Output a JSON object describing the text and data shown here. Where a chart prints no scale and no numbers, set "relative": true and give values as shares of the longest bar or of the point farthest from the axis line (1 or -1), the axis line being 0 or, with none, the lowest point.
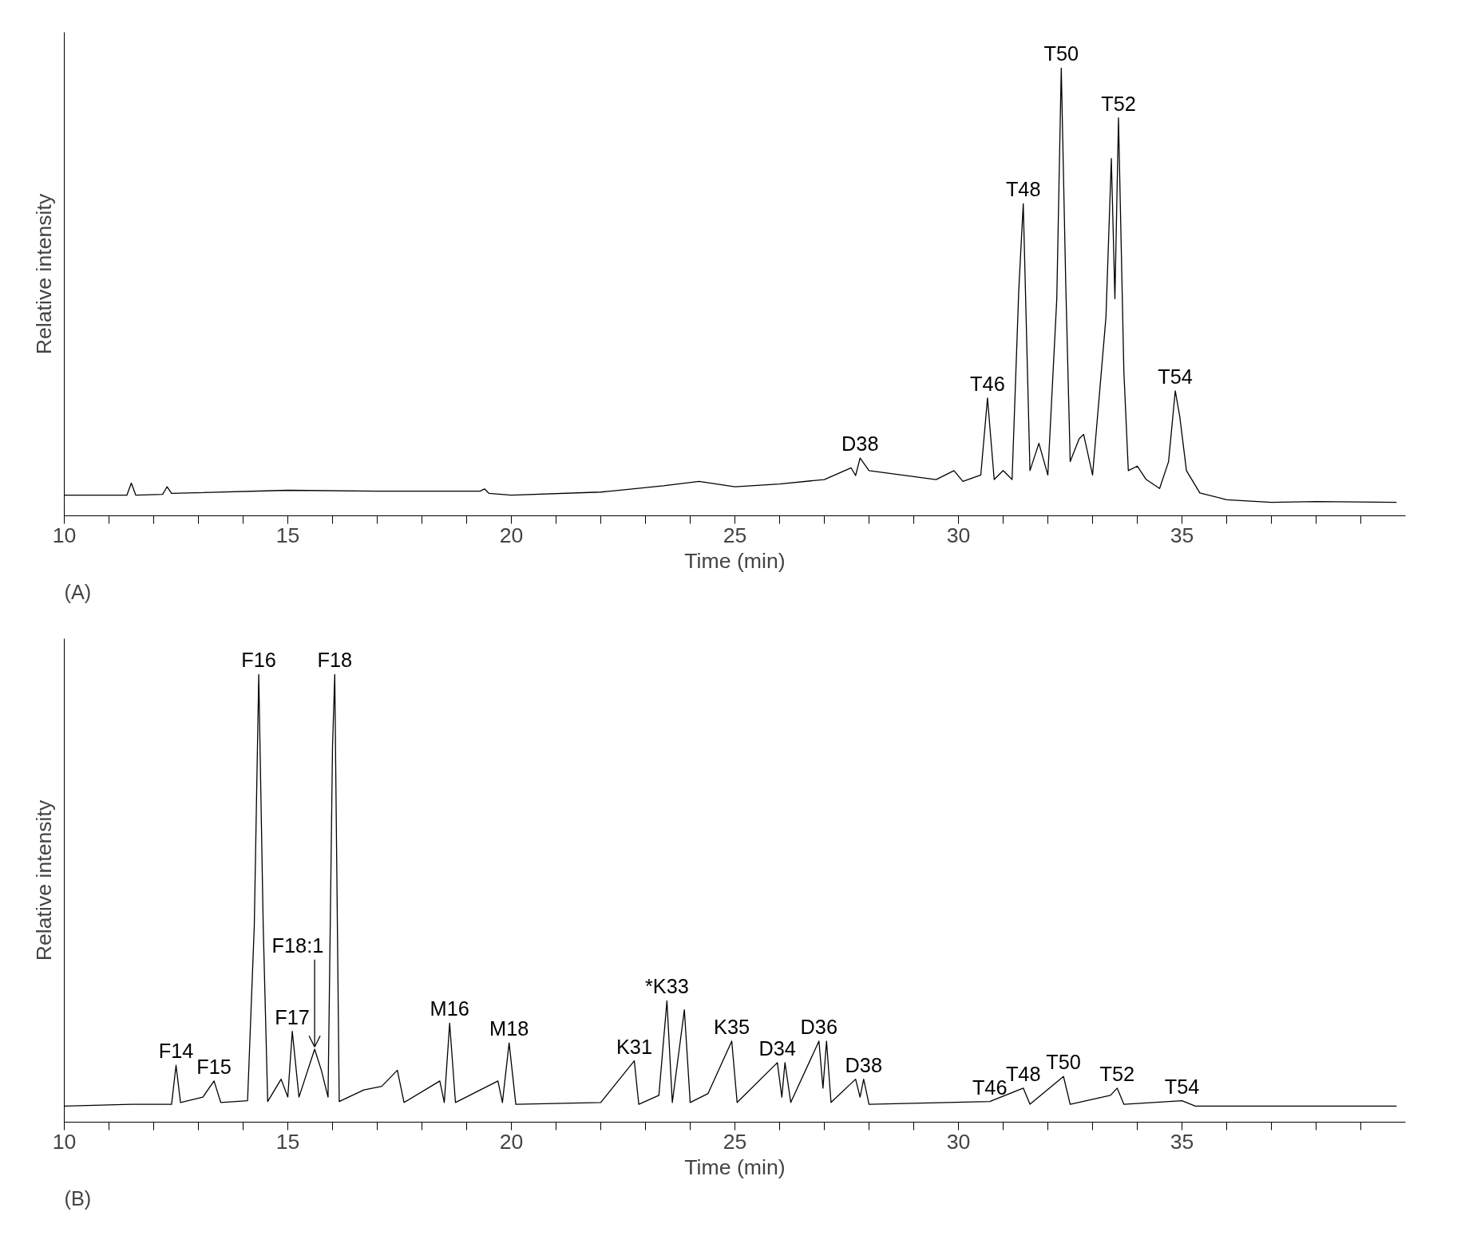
{
  "chart_data": [
    {
      "type": "line",
      "relative": true,
      "xlabel": "Time (min)",
      "ylabel": "Relative intensity",
      "xlim": [
        10,
        40
      ],
      "xticks": [
        10,
        {
          "value": 11,
          "label": null
        },
        {
          "value": 12,
          "label": null
        },
        {
          "value": 13,
          "label": null
        },
        {
          "value": 14,
          "label": null
        },
        15,
        {
          "value": 16,
          "label": null
        },
        {
          "value": 17,
          "label": null
        },
        {
          "value": 18,
          "label": null
        },
        {
          "value": 19,
          "label": null
        },
        20,
        {
          "value": 21,
          "label": null
        },
        {
          "value": 22,
          "label": null
        },
        {
          "value": 23,
          "label": null
        },
        {
          "value": 24,
          "label": null
        },
        25,
        {
          "value": 26,
          "label": null
        },
        {
          "value": 27,
          "label": null
        },
        {
          "value": 28,
          "label": null
        },
        {
          "value": 29,
          "label": null
        },
        30,
        {
          "value": 31,
          "label": null
        },
        {
          "value": 32,
          "label": null
        },
        {
          "value": 33,
          "label": null
        },
        {
          "value": 34,
          "label": null
        },
        35,
        {
          "value": 36,
          "label": null
        },
        {
          "value": 37,
          "label": null
        },
        {
          "value": 38,
          "label": null
        },
        {
          "value": 39,
          "label": null
        }
      ],
      "series": [
        {
          "color": "#000000",
          "x": [
            10,
            11.4,
            11.5,
            11.6,
            12.2,
            12.3,
            12.4,
            15,
            17,
            19.3,
            19.4,
            19.5,
            20,
            22,
            23.4,
            24.2,
            25,
            26,
            27,
            27.6,
            27.7,
            27.8,
            28,
            29.5,
            29.9,
            30.1,
            30.5,
            30.65,
            30.8,
            31.0,
            31.2,
            31.35,
            31.45,
            31.6,
            31.8,
            32.0,
            32.2,
            32.3,
            32.4,
            32.5,
            32.7,
            32.8,
            33.0,
            33.3,
            33.42,
            33.5,
            33.58,
            33.7,
            33.8,
            34.0,
            34.2,
            34.5,
            34.7,
            34.85,
            34.95,
            35.1,
            35.4,
            36,
            37,
            38,
            39.8
          ],
          "values": [
            0.046,
            0.046,
            0.073,
            0.046,
            0.048,
            0.065,
            0.05,
            0.057,
            0.055,
            0.055,
            0.06,
            0.05,
            0.046,
            0.053,
            0.067,
            0.077,
            0.065,
            0.071,
            0.081,
            0.107,
            0.09,
            0.129,
            0.101,
            0.081,
            0.101,
            0.077,
            0.091,
            0.263,
            0.081,
            0.101,
            0.081,
            0.505,
            0.697,
            0.101,
            0.162,
            0.091,
            0.485,
            1.0,
            0.52,
            0.121,
            0.172,
            0.182,
            0.091,
            0.444,
            0.798,
            0.485,
            0.889,
            0.323,
            0.101,
            0.111,
            0.081,
            0.061,
            0.121,
            0.279,
            0.222,
            0.101,
            0.051,
            0.036,
            0.03,
            0.032,
            0.03
          ]
        }
      ],
      "annotations": [
        "(A)",
        {
          "text": "D38",
          "x": 27.8,
          "y": 0.129
        },
        {
          "text": "T46",
          "x": 30.65,
          "y": 0.263
        },
        {
          "text": "T48",
          "x": 31.45,
          "y": 0.697
        },
        {
          "text": "T50",
          "x": 32.3,
          "y": 1.0
        },
        {
          "text": "T52",
          "x": 33.58,
          "y": 0.889
        },
        {
          "text": "T54",
          "x": 34.85,
          "y": 0.279
        }
      ]
    },
    {
      "type": "line",
      "relative": true,
      "xlabel": "Time (min)",
      "ylabel": "Relative intensity",
      "xlim": [
        10,
        40
      ],
      "xticks": [
        10,
        {
          "value": 11,
          "label": null
        },
        {
          "value": 12,
          "label": null
        },
        {
          "value": 13,
          "label": null
        },
        {
          "value": 14,
          "label": null
        },
        15,
        {
          "value": 16,
          "label": null
        },
        {
          "value": 17,
          "label": null
        },
        {
          "value": 18,
          "label": null
        },
        {
          "value": 19,
          "label": null
        },
        20,
        {
          "value": 21,
          "label": null
        },
        {
          "value": 22,
          "label": null
        },
        {
          "value": 23,
          "label": null
        },
        {
          "value": 24,
          "label": null
        },
        25,
        {
          "value": 26,
          "label": null
        },
        {
          "value": 27,
          "label": null
        },
        {
          "value": 28,
          "label": null
        },
        {
          "value": 29,
          "label": null
        },
        30,
        {
          "value": 31,
          "label": null
        },
        {
          "value": 32,
          "label": null
        },
        {
          "value": 33,
          "label": null
        },
        {
          "value": 34,
          "label": null
        },
        35,
        {
          "value": 36,
          "label": null
        },
        {
          "value": 37,
          "label": null
        },
        {
          "value": 38,
          "label": null
        },
        {
          "value": 39,
          "label": null
        }
      ],
      "series": [
        {
          "color": "#000000",
          "x": [
            10,
            11.5,
            12.0,
            12.4,
            12.5,
            12.6,
            13.1,
            13.35,
            13.5,
            14.1,
            14.25,
            14.35,
            14.45,
            14.55,
            14.85,
            15.0,
            15.1,
            15.25,
            15.6,
            15.75,
            15.9,
            16.0,
            16.05,
            16.15,
            16.7,
            17.1,
            17.45,
            17.6,
            18.4,
            18.5,
            18.62,
            18.75,
            19.7,
            19.8,
            19.95,
            20.1,
            22.0,
            22.75,
            22.85,
            23.3,
            23.48,
            23.6,
            23.87,
            24.0,
            24.4,
            24.93,
            25.05,
            25.95,
            26.05,
            26.12,
            26.25,
            26.88,
            26.97,
            27.05,
            27.15,
            27.7,
            27.8,
            27.88,
            28.0,
            30.7,
            31.45,
            31.6,
            32.35,
            32.5,
            33.4,
            33.55,
            33.7,
            35.0,
            35.3,
            39.8
          ],
          "values": [
            0.036,
            0.04,
            0.04,
            0.04,
            0.127,
            0.044,
            0.056,
            0.092,
            0.044,
            0.048,
            0.438,
            1.0,
            0.438,
            0.046,
            0.096,
            0.056,
            0.203,
            0.056,
            0.163,
            0.116,
            0.056,
            0.839,
            1.0,
            0.046,
            0.072,
            0.08,
            0.116,
            0.044,
            0.092,
            0.044,
            0.221,
            0.044,
            0.092,
            0.044,
            0.177,
            0.04,
            0.044,
            0.137,
            0.04,
            0.06,
            0.271,
            0.044,
            0.251,
            0.044,
            0.064,
            0.181,
            0.044,
            0.133,
            0.056,
            0.133,
            0.044,
            0.181,
            0.076,
            0.181,
            0.044,
            0.096,
            0.056,
            0.096,
            0.04,
            0.046,
            0.076,
            0.04,
            0.102,
            0.04,
            0.06,
            0.076,
            0.04,
            0.048,
            0.036,
            0.036
          ]
        }
      ],
      "annotations": [
        "(B)",
        {
          "text": "F14",
          "x": 12.5,
          "y": 0.127
        },
        {
          "text": "F15",
          "x": 13.35,
          "y": 0.092
        },
        {
          "text": "F16",
          "x": 14.35,
          "y": 1.0
        },
        {
          "text": "F17",
          "x": 15.1,
          "y": 0.203
        },
        {
          "text": "F18:1",
          "x": 15.6,
          "y": 0.163
        },
        {
          "text": "F18",
          "x": 16.05,
          "y": 1.0
        },
        {
          "text": "M16",
          "x": 18.62,
          "y": 0.221
        },
        {
          "text": "M18",
          "x": 19.95,
          "y": 0.177
        },
        {
          "text": "K31",
          "x": 22.75,
          "y": 0.137
        },
        {
          "text": "*K33",
          "x": 23.48,
          "y": 0.271
        },
        {
          "text": "K35",
          "x": 24.93,
          "y": 0.181
        },
        {
          "text": "D34",
          "x": 25.95,
          "y": 0.133
        },
        {
          "text": "D36",
          "x": 26.88,
          "y": 0.181
        },
        {
          "text": "D38",
          "x": 27.88,
          "y": 0.096
        },
        {
          "text": "T46",
          "x": 30.7,
          "y": 0.046
        },
        {
          "text": "T48",
          "x": 31.45,
          "y": 0.076
        },
        {
          "text": "T50",
          "x": 32.35,
          "y": 0.102
        },
        {
          "text": "T52",
          "x": 33.55,
          "y": 0.076
        },
        {
          "text": "T54",
          "x": 35.0,
          "y": 0.048
        }
      ]
    }
  ]
}
